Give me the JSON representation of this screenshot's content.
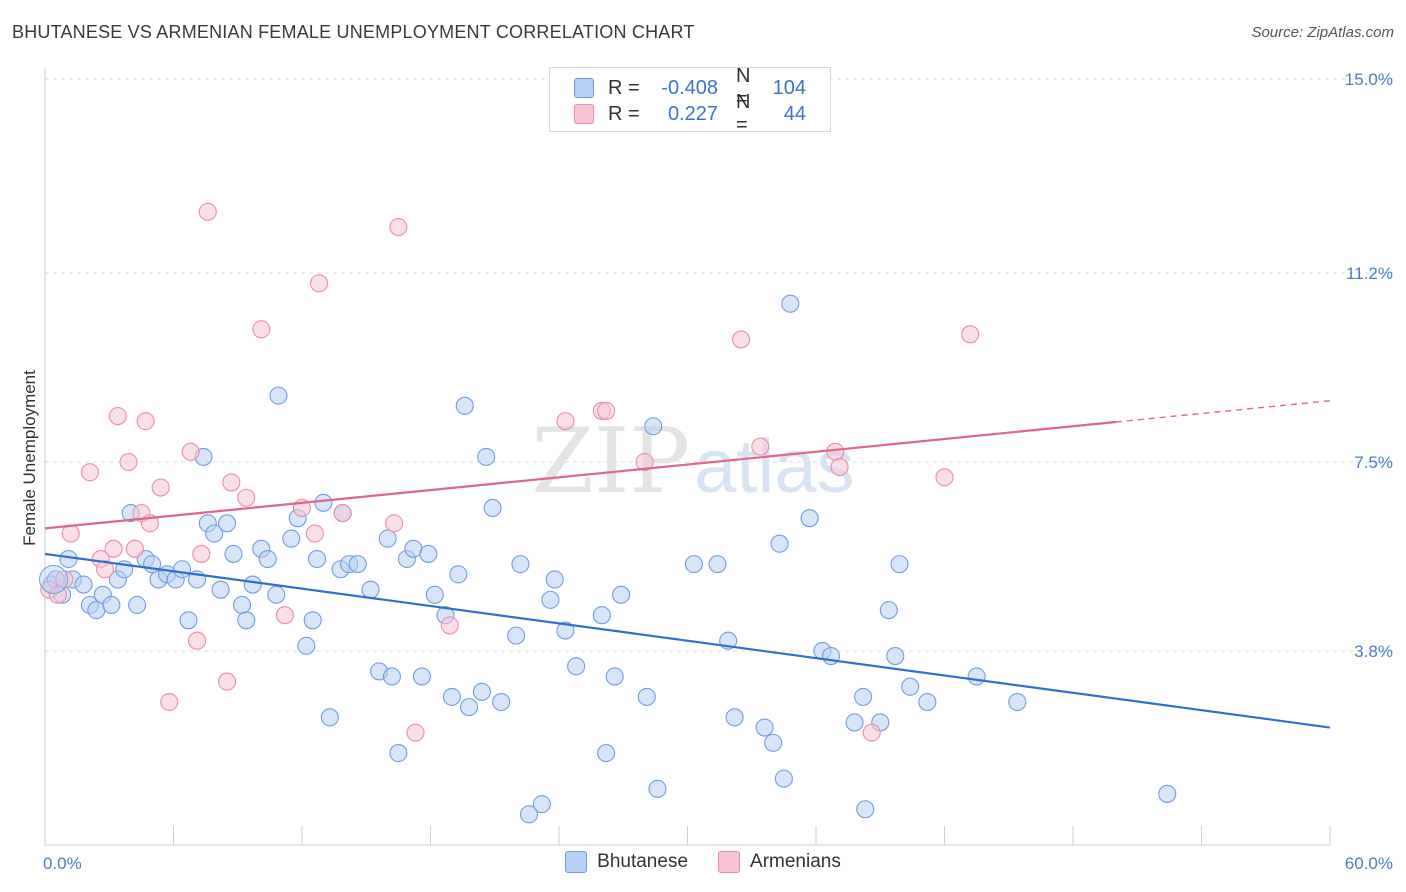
{
  "chart_data": {
    "type": "scatter",
    "title": "BHUTANESE VS ARMENIAN FEMALE UNEMPLOYMENT CORRELATION CHART",
    "source": "Source: ZipAtlas.com",
    "ylabel": "Female Unemployment",
    "xlim": [
      0,
      60
    ],
    "ylim": [
      0,
      15
    ],
    "x_tick_labels": [
      "0.0%",
      "60.0%"
    ],
    "y_ticks": [
      3.8,
      7.5,
      11.2,
      15.0
    ],
    "y_tick_labels": [
      "3.8%",
      "7.5%",
      "11.2%",
      "15.0%"
    ],
    "grid": true,
    "watermark": "ZIPatlas",
    "legend_stats": [
      {
        "r_label": "R =",
        "r": "-0.408",
        "n_label": "N =",
        "n": "104"
      },
      {
        "r_label": "R =",
        "r": "0.227",
        "n_label": "N =",
        "n": "44"
      }
    ],
    "series": [
      {
        "name": "Bhutanese",
        "color": "#6f9ee0",
        "fill": "#b8d0f3",
        "line_color": "#2f6fd0",
        "trend": {
          "x": [
            0,
            60
          ],
          "y": [
            5.7,
            2.3
          ],
          "dashed_from": null
        },
        "points": [
          [
            0.3,
            5.1
          ],
          [
            0.5,
            5.2
          ],
          [
            0.8,
            4.9
          ],
          [
            1.1,
            5.6
          ],
          [
            1.3,
            5.2
          ],
          [
            1.8,
            5.1
          ],
          [
            2.1,
            4.7
          ],
          [
            2.4,
            4.6
          ],
          [
            2.7,
            4.9
          ],
          [
            3.1,
            4.7
          ],
          [
            3.4,
            5.2
          ],
          [
            3.7,
            5.4
          ],
          [
            4.0,
            6.5
          ],
          [
            4.3,
            4.7
          ],
          [
            4.7,
            5.6
          ],
          [
            5.0,
            5.5
          ],
          [
            5.3,
            5.2
          ],
          [
            5.7,
            5.3
          ],
          [
            6.1,
            5.2
          ],
          [
            6.4,
            5.4
          ],
          [
            6.7,
            4.4
          ],
          [
            7.1,
            5.2
          ],
          [
            7.4,
            7.6
          ],
          [
            7.6,
            6.3
          ],
          [
            7.9,
            6.1
          ],
          [
            8.2,
            5.0
          ],
          [
            8.5,
            6.3
          ],
          [
            8.8,
            5.7
          ],
          [
            9.2,
            4.7
          ],
          [
            9.4,
            4.4
          ],
          [
            9.7,
            5.1
          ],
          [
            10.1,
            5.8
          ],
          [
            10.4,
            5.6
          ],
          [
            10.8,
            4.9
          ],
          [
            10.9,
            8.8
          ],
          [
            11.5,
            6.0
          ],
          [
            11.8,
            6.4
          ],
          [
            12.2,
            3.9
          ],
          [
            12.5,
            4.4
          ],
          [
            12.7,
            5.6
          ],
          [
            13.0,
            6.7
          ],
          [
            13.3,
            2.5
          ],
          [
            13.8,
            5.4
          ],
          [
            13.9,
            6.5
          ],
          [
            14.2,
            5.5
          ],
          [
            14.6,
            5.5
          ],
          [
            15.2,
            5.0
          ],
          [
            15.6,
            3.4
          ],
          [
            16.0,
            6.0
          ],
          [
            16.2,
            3.3
          ],
          [
            16.5,
            1.8
          ],
          [
            16.9,
            5.6
          ],
          [
            17.2,
            5.8
          ],
          [
            17.6,
            3.3
          ],
          [
            17.9,
            5.7
          ],
          [
            18.2,
            4.9
          ],
          [
            18.7,
            4.5
          ],
          [
            19.0,
            2.9
          ],
          [
            19.3,
            5.3
          ],
          [
            19.6,
            8.6
          ],
          [
            19.8,
            2.7
          ],
          [
            20.4,
            3.0
          ],
          [
            20.6,
            7.6
          ],
          [
            20.9,
            6.6
          ],
          [
            21.3,
            2.8
          ],
          [
            22.0,
            4.1
          ],
          [
            22.2,
            5.5
          ],
          [
            22.6,
            0.6
          ],
          [
            23.2,
            0.8
          ],
          [
            23.6,
            4.8
          ],
          [
            23.8,
            5.2
          ],
          [
            24.3,
            4.2
          ],
          [
            24.8,
            3.5
          ],
          [
            26.0,
            4.5
          ],
          [
            26.2,
            1.8
          ],
          [
            26.6,
            3.3
          ],
          [
            26.9,
            4.9
          ],
          [
            28.1,
            2.9
          ],
          [
            28.4,
            8.2
          ],
          [
            28.6,
            1.1
          ],
          [
            30.3,
            5.5
          ],
          [
            31.4,
            5.5
          ],
          [
            31.9,
            4.0
          ],
          [
            32.2,
            2.5
          ],
          [
            33.6,
            2.3
          ],
          [
            34.0,
            2.0
          ],
          [
            34.3,
            5.9
          ],
          [
            34.5,
            1.3
          ],
          [
            34.8,
            10.6
          ],
          [
            35.7,
            6.4
          ],
          [
            36.3,
            3.8
          ],
          [
            36.7,
            3.7
          ],
          [
            37.8,
            2.4
          ],
          [
            38.2,
            2.9
          ],
          [
            38.3,
            0.7
          ],
          [
            39.0,
            2.4
          ],
          [
            39.4,
            4.6
          ],
          [
            39.7,
            3.7
          ],
          [
            39.9,
            5.5
          ],
          [
            40.4,
            3.1
          ],
          [
            41.2,
            2.8
          ],
          [
            43.5,
            3.3
          ],
          [
            45.4,
            2.8
          ],
          [
            52.4,
            1.0
          ]
        ]
      },
      {
        "name": "Armenians",
        "color": "#e98eaa",
        "fill": "#f7c4d3",
        "line_color": "#e0648c",
        "trend": {
          "x": [
            0,
            60
          ],
          "y": [
            6.2,
            8.7
          ],
          "dashed_from": 50
        },
        "points": [
          [
            0.2,
            5.0
          ],
          [
            0.6,
            4.9
          ],
          [
            0.9,
            5.2
          ],
          [
            1.2,
            6.1
          ],
          [
            2.1,
            7.3
          ],
          [
            2.6,
            5.6
          ],
          [
            2.8,
            5.4
          ],
          [
            3.2,
            5.8
          ],
          [
            3.4,
            8.4
          ],
          [
            3.9,
            7.5
          ],
          [
            4.2,
            5.8
          ],
          [
            4.5,
            6.5
          ],
          [
            4.7,
            8.3
          ],
          [
            4.9,
            6.3
          ],
          [
            5.4,
            7.0
          ],
          [
            5.8,
            2.8
          ],
          [
            6.8,
            7.7
          ],
          [
            7.1,
            4.0
          ],
          [
            7.3,
            5.7
          ],
          [
            7.6,
            12.4
          ],
          [
            8.5,
            3.2
          ],
          [
            8.7,
            7.1
          ],
          [
            9.4,
            6.8
          ],
          [
            10.1,
            10.1
          ],
          [
            11.2,
            4.5
          ],
          [
            12.0,
            6.6
          ],
          [
            12.6,
            6.1
          ],
          [
            12.8,
            11.0
          ],
          [
            13.9,
            6.5
          ],
          [
            16.3,
            6.3
          ],
          [
            16.5,
            12.1
          ],
          [
            17.3,
            2.2
          ],
          [
            18.9,
            4.3
          ],
          [
            24.3,
            8.3
          ],
          [
            26.0,
            8.5
          ],
          [
            26.2,
            8.5
          ],
          [
            28.0,
            7.5
          ],
          [
            32.5,
            9.9
          ],
          [
            33.4,
            7.8
          ],
          [
            36.9,
            7.7
          ],
          [
            37.1,
            7.4
          ],
          [
            38.6,
            2.2
          ],
          [
            42.0,
            7.2
          ],
          [
            43.2,
            10.0
          ]
        ]
      }
    ]
  }
}
